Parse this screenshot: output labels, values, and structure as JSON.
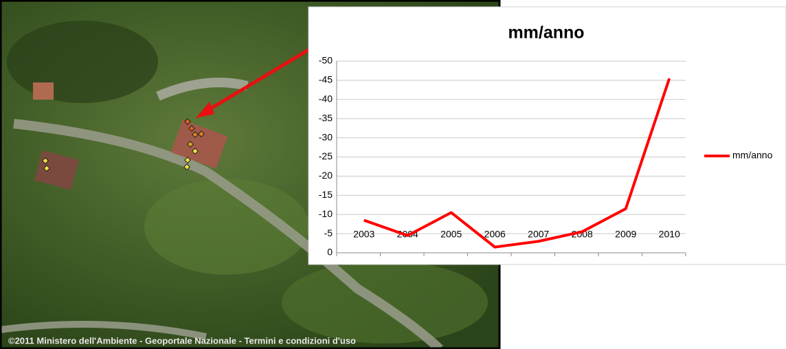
{
  "chart_data": {
    "type": "line",
    "title": "mm/anno",
    "categories": [
      "2003",
      "2004",
      "2005",
      "2006",
      "2007",
      "2008",
      "2009",
      "2010"
    ],
    "series": [
      {
        "name": "mm/anno",
        "color": "#ff0000",
        "values": [
          -8.5,
          -4.5,
          -10.5,
          -1.5,
          -3,
          -5.5,
          -11.5,
          -45.5
        ]
      }
    ],
    "ylim": [
      0,
      -50
    ],
    "yticks": [
      0,
      -5,
      -10,
      -15,
      -20,
      -25,
      -30,
      -35,
      -40,
      -45,
      -50
    ],
    "grid": true,
    "legend": "right"
  },
  "map": {
    "copyright": "©2011 Ministero dell'Ambiente - Geoportale Nazionale - Termini e condizioni d'uso"
  }
}
